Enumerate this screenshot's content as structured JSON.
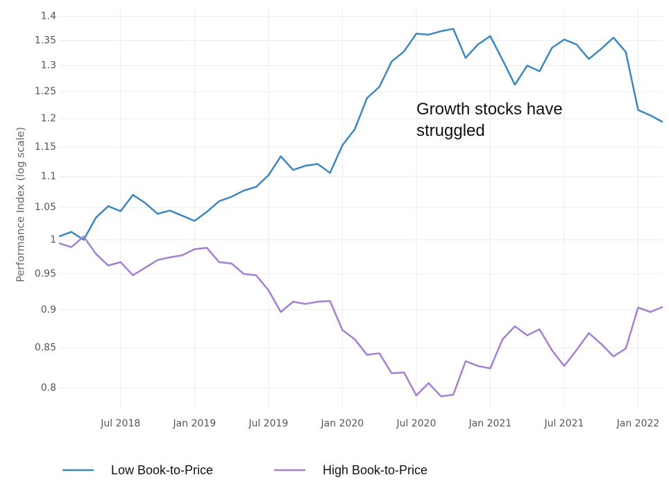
{
  "chart_data": {
    "type": "line",
    "y_label": "Performance Index (log scale)",
    "annotation": "Growth stocks have struggled",
    "log_y": true,
    "grid": true,
    "legend": "bottom",
    "x": [
      "2018-02",
      "2018-03",
      "2018-04",
      "2018-05",
      "2018-06",
      "2018-07",
      "2018-08",
      "2018-09",
      "2018-10",
      "2018-11",
      "2018-12",
      "2019-01",
      "2019-02",
      "2019-03",
      "2019-04",
      "2019-05",
      "2019-06",
      "2019-07",
      "2019-08",
      "2019-09",
      "2019-10",
      "2019-11",
      "2019-12",
      "2020-01",
      "2020-02",
      "2020-03",
      "2020-04",
      "2020-05",
      "2020-06",
      "2020-07",
      "2020-08",
      "2020-09",
      "2020-10",
      "2020-11",
      "2020-12",
      "2021-01",
      "2021-02",
      "2021-03",
      "2021-04",
      "2021-05",
      "2021-06",
      "2021-07",
      "2021-08",
      "2021-09",
      "2021-10",
      "2021-11",
      "2021-12",
      "2022-01",
      "2022-02",
      "2022-03"
    ],
    "xlim": [
      "2018-02",
      "2022-03"
    ],
    "xticks": [
      {
        "value": "2018-07",
        "label": "Jul 2018"
      },
      {
        "value": "2019-01",
        "label": "Jan 2019"
      },
      {
        "value": "2019-07",
        "label": "Jul 2019"
      },
      {
        "value": "2020-01",
        "label": "Jan 2020"
      },
      {
        "value": "2020-07",
        "label": "Jul 2020"
      },
      {
        "value": "2021-01",
        "label": "Jan 2021"
      },
      {
        "value": "2021-07",
        "label": "Jul 2021"
      },
      {
        "value": "2022-01",
        "label": "Jan 2022"
      }
    ],
    "ylim": [
      0.775,
      1.42
    ],
    "yticks": [
      0.8,
      0.85,
      0.9,
      0.95,
      1,
      1.05,
      1.1,
      1.15,
      1.2,
      1.25,
      1.3,
      1.35,
      1.4
    ],
    "series": [
      {
        "name": "Low Book-to-Price",
        "color": "#3a87c0",
        "values": [
          1.005,
          1.012,
          1.0,
          1.034,
          1.052,
          1.044,
          1.07,
          1.057,
          1.04,
          1.045,
          1.037,
          1.029,
          1.043,
          1.06,
          1.067,
          1.077,
          1.083,
          1.102,
          1.134,
          1.111,
          1.118,
          1.121,
          1.106,
          1.153,
          1.181,
          1.238,
          1.259,
          1.308,
          1.328,
          1.364,
          1.362,
          1.369,
          1.374,
          1.315,
          1.342,
          1.359,
          1.311,
          1.263,
          1.3,
          1.289,
          1.335,
          1.352,
          1.342,
          1.313,
          1.333,
          1.356,
          1.327,
          1.216,
          1.206,
          1.194
        ]
      },
      {
        "name": "High Book-to-Price",
        "color": "#a47fd0",
        "values": [
          0.995,
          0.989,
          1.005,
          0.979,
          0.962,
          0.967,
          0.948,
          0.959,
          0.97,
          0.974,
          0.977,
          0.986,
          0.988,
          0.967,
          0.965,
          0.95,
          0.948,
          0.927,
          0.897,
          0.911,
          0.908,
          0.911,
          0.912,
          0.873,
          0.861,
          0.841,
          0.843,
          0.818,
          0.819,
          0.791,
          0.806,
          0.79,
          0.792,
          0.833,
          0.827,
          0.824,
          0.861,
          0.878,
          0.866,
          0.874,
          0.847,
          0.827,
          0.847,
          0.869,
          0.855,
          0.839,
          0.849,
          0.903,
          0.897,
          0.904
        ]
      }
    ]
  }
}
